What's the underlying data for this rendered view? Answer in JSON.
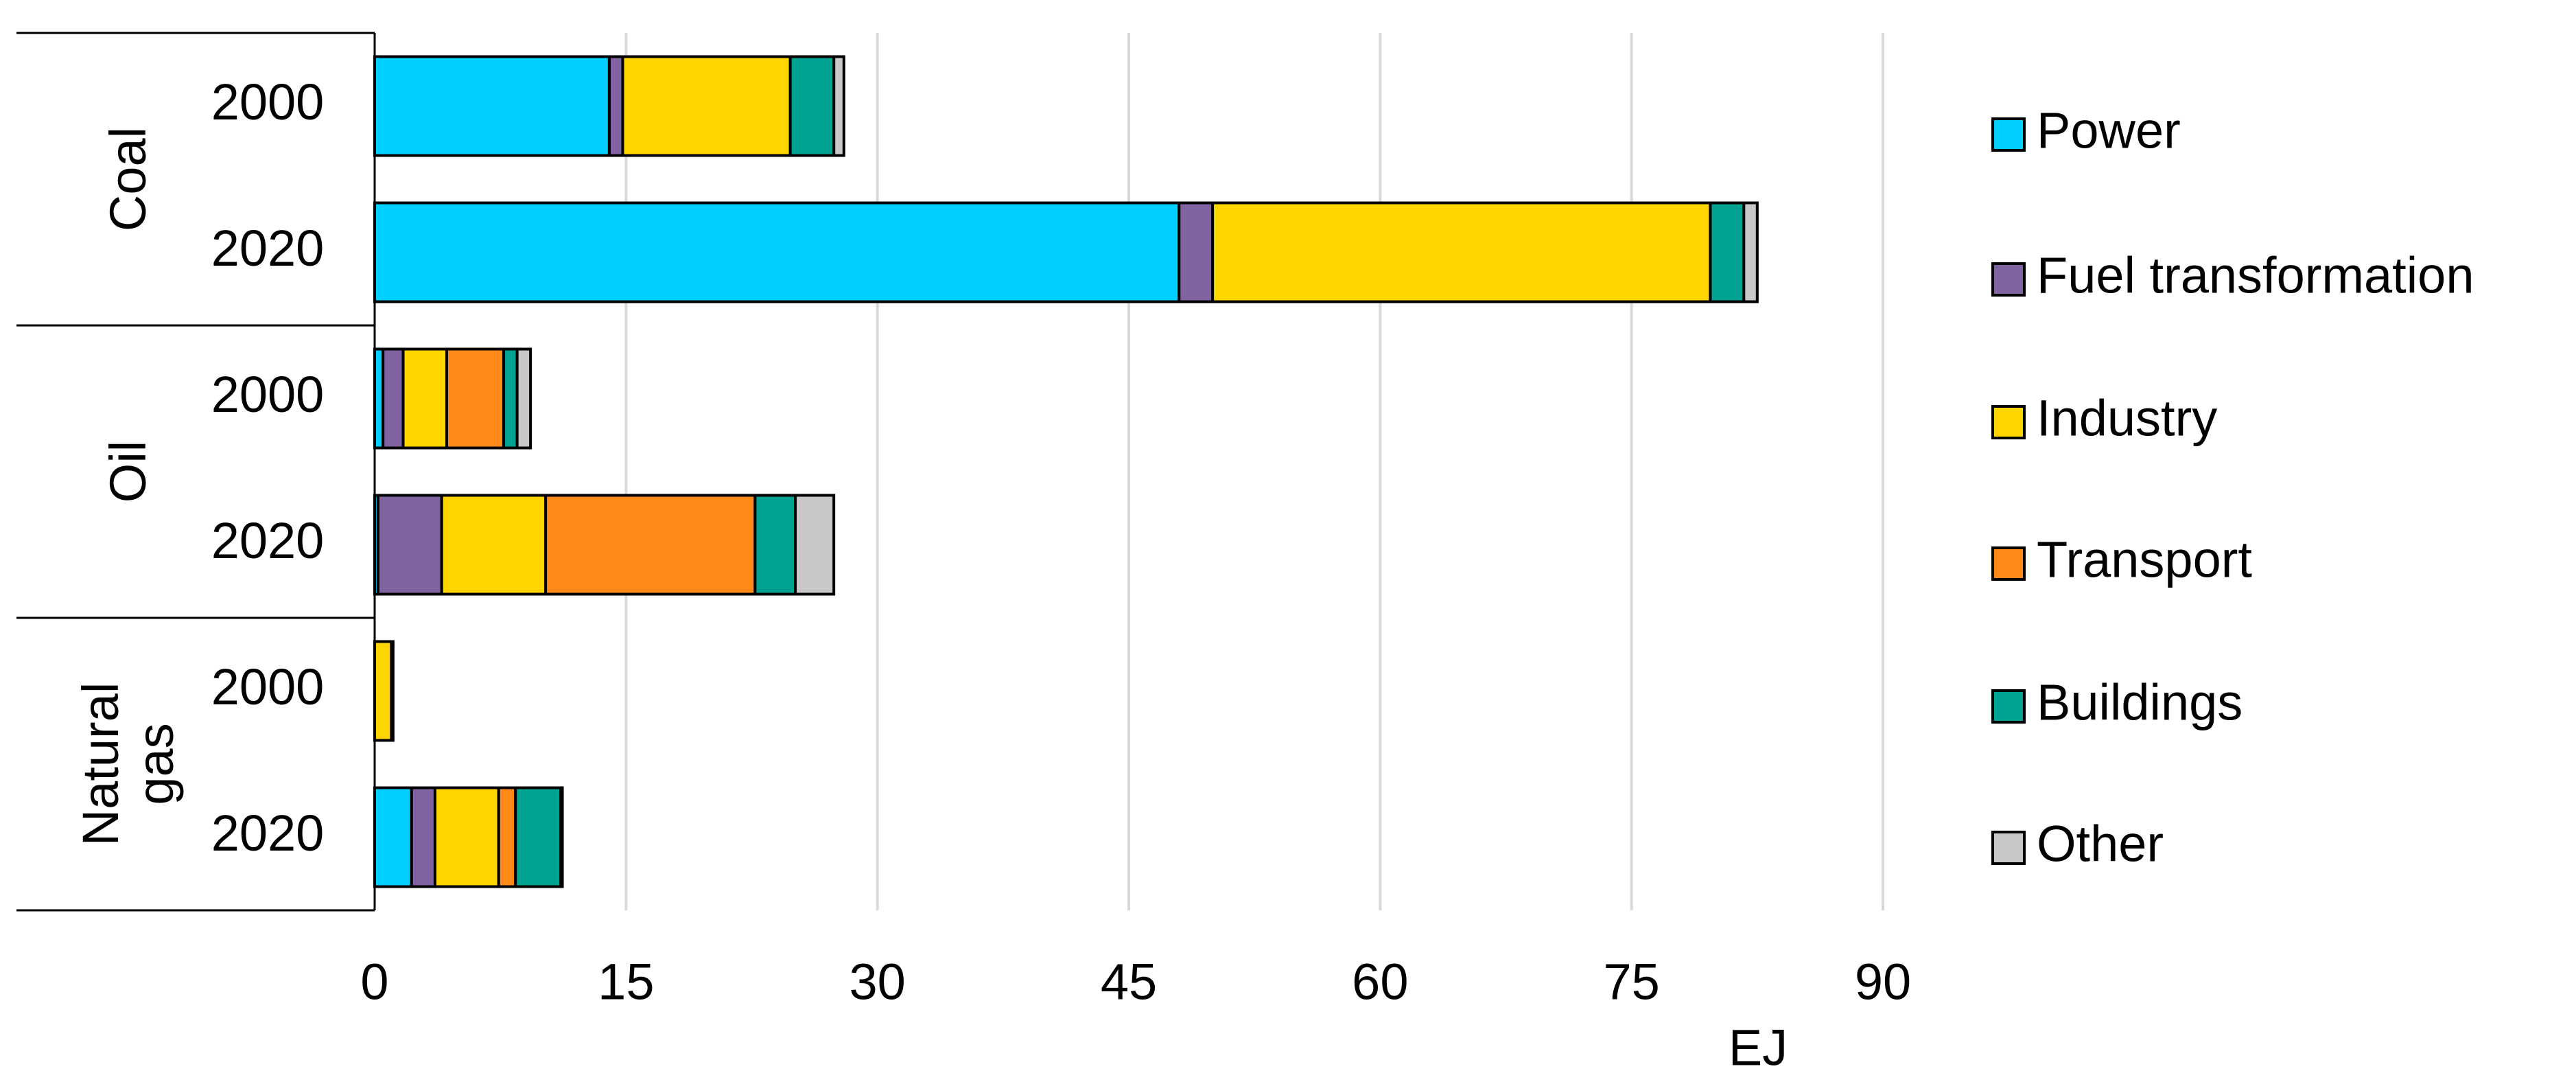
{
  "chart_data": {
    "type": "stacked-bar-horizontal",
    "groups": [
      "Coal",
      "Oil",
      "Natural gas"
    ],
    "categories": [
      "2000",
      "2020",
      "2000",
      "2020",
      "2000",
      "2020"
    ],
    "series": [
      {
        "name": "Power",
        "color": "#00d0ff",
        "values": [
          14,
          48,
          0.5,
          0.2,
          0,
          2.2
        ]
      },
      {
        "name": "Fuel transformation",
        "color": "#8064a2",
        "values": [
          0.8,
          2,
          1.2,
          3.8,
          0,
          1.4
        ]
      },
      {
        "name": "Industry",
        "color": "#ffd500",
        "values": [
          10,
          29.7,
          2.6,
          6.2,
          1,
          3.8
        ]
      },
      {
        "name": "Transport",
        "color": "#ff8a17",
        "values": [
          0,
          0,
          3.4,
          12.5,
          0,
          1
        ]
      },
      {
        "name": "Buildings",
        "color": "#00a392",
        "values": [
          2.6,
          2,
          0.8,
          2.4,
          0.1,
          2.7
        ]
      },
      {
        "name": "Other",
        "color": "#c8c8c8",
        "values": [
          0.6,
          0.8,
          0.8,
          2.3,
          0,
          0.1
        ]
      }
    ],
    "xlabel": "EJ",
    "xlim": [
      0,
      90
    ],
    "xticks": [
      0,
      15,
      30,
      45,
      60,
      75,
      90
    ],
    "grid": true,
    "legend": "right"
  }
}
